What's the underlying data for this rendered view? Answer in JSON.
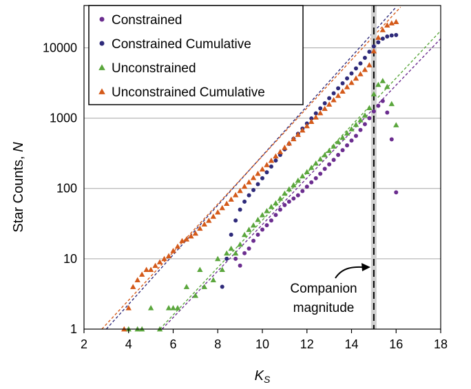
{
  "chart_data": {
    "type": "scatter",
    "title": "",
    "xlabel": "K",
    "xlabel_sub": "S",
    "ylabel_prefix": "Star Counts, ",
    "ylabel_var": "N",
    "xlim": [
      2,
      18
    ],
    "ylim": [
      1,
      40000
    ],
    "yscale": "log",
    "xticks": [
      2,
      4,
      6,
      8,
      10,
      12,
      14,
      16,
      18
    ],
    "yticks": [
      1,
      10,
      100,
      1000,
      10000
    ],
    "yticklabels": [
      "1",
      "10",
      "100",
      "1000",
      "10000"
    ],
    "grid": "horizontal",
    "legend_position": "top-left",
    "companion_magnitude": 15.0,
    "annotation": {
      "line1": "Companion",
      "line2": "magnitude"
    },
    "series": [
      {
        "name": "Constrained",
        "marker": "circle",
        "color": "#6b2d8f",
        "points": [
          [
            8.8,
            10
          ],
          [
            9.0,
            8
          ],
          [
            9.2,
            12
          ],
          [
            9.4,
            14
          ],
          [
            9.6,
            18
          ],
          [
            9.8,
            22
          ],
          [
            10.0,
            26
          ],
          [
            10.2,
            30
          ],
          [
            10.4,
            35
          ],
          [
            10.6,
            42
          ],
          [
            10.8,
            50
          ],
          [
            11.0,
            58
          ],
          [
            11.2,
            65
          ],
          [
            11.4,
            72
          ],
          [
            11.6,
            80
          ],
          [
            11.8,
            92
          ],
          [
            12.0,
            106
          ],
          [
            12.2,
            122
          ],
          [
            12.4,
            140
          ],
          [
            12.6,
            162
          ],
          [
            12.8,
            190
          ],
          [
            13.0,
            220
          ],
          [
            13.2,
            255
          ],
          [
            13.4,
            300
          ],
          [
            13.6,
            350
          ],
          [
            13.8,
            410
          ],
          [
            14.0,
            480
          ],
          [
            14.2,
            560
          ],
          [
            14.4,
            680
          ],
          [
            14.6,
            820
          ],
          [
            14.8,
            1000
          ],
          [
            15.0,
            1250
          ],
          [
            15.2,
            1500
          ],
          [
            15.4,
            1750
          ],
          [
            15.6,
            1200
          ],
          [
            15.8,
            500
          ],
          [
            16.0,
            88
          ]
        ]
      },
      {
        "name": "Constrained Cumulative",
        "marker": "circle",
        "color": "#2e2a7a",
        "points": [
          [
            8.2,
            4
          ],
          [
            8.4,
            10
          ],
          [
            8.6,
            22
          ],
          [
            8.8,
            35
          ],
          [
            9.0,
            50
          ],
          [
            9.2,
            65
          ],
          [
            9.4,
            80
          ],
          [
            9.6,
            95
          ],
          [
            9.8,
            115
          ],
          [
            10.0,
            140
          ],
          [
            10.2,
            170
          ],
          [
            10.4,
            205
          ],
          [
            10.6,
            250
          ],
          [
            10.8,
            300
          ],
          [
            11.0,
            360
          ],
          [
            11.2,
            430
          ],
          [
            11.4,
            510
          ],
          [
            11.6,
            600
          ],
          [
            11.8,
            710
          ],
          [
            12.0,
            840
          ],
          [
            12.2,
            990
          ],
          [
            12.4,
            1170
          ],
          [
            12.6,
            1380
          ],
          [
            12.8,
            1630
          ],
          [
            13.0,
            1920
          ],
          [
            13.2,
            2260
          ],
          [
            13.4,
            2660
          ],
          [
            13.6,
            3130
          ],
          [
            13.8,
            3680
          ],
          [
            14.0,
            4330
          ],
          [
            14.2,
            5100
          ],
          [
            14.4,
            6000
          ],
          [
            14.6,
            7200
          ],
          [
            14.8,
            8800
          ],
          [
            15.0,
            10500
          ],
          [
            15.2,
            12000
          ],
          [
            15.4,
            13500
          ],
          [
            15.6,
            14500
          ],
          [
            15.8,
            15000
          ],
          [
            16.0,
            15200
          ]
        ]
      },
      {
        "name": "Unconstrained",
        "marker": "triangle",
        "color": "#5aa63c",
        "points": [
          [
            4.0,
            1
          ],
          [
            4.4,
            1
          ],
          [
            4.6,
            1
          ],
          [
            5.0,
            2
          ],
          [
            5.4,
            1
          ],
          [
            5.8,
            2
          ],
          [
            6.0,
            2
          ],
          [
            6.2,
            2
          ],
          [
            6.6,
            4
          ],
          [
            7.0,
            3
          ],
          [
            7.2,
            7
          ],
          [
            7.4,
            4
          ],
          [
            7.8,
            5
          ],
          [
            8.0,
            10
          ],
          [
            8.2,
            7
          ],
          [
            8.4,
            12
          ],
          [
            8.6,
            14
          ],
          [
            8.8,
            12
          ],
          [
            9.0,
            16
          ],
          [
            9.2,
            22
          ],
          [
            9.4,
            26
          ],
          [
            9.6,
            30
          ],
          [
            9.8,
            36
          ],
          [
            10.0,
            42
          ],
          [
            10.2,
            48
          ],
          [
            10.4,
            55
          ],
          [
            10.6,
            62
          ],
          [
            10.8,
            72
          ],
          [
            11.0,
            85
          ],
          [
            11.2,
            98
          ],
          [
            11.4,
            112
          ],
          [
            11.6,
            130
          ],
          [
            11.8,
            150
          ],
          [
            12.0,
            172
          ],
          [
            12.2,
            198
          ],
          [
            12.4,
            228
          ],
          [
            12.6,
            262
          ],
          [
            12.8,
            300
          ],
          [
            13.0,
            345
          ],
          [
            13.2,
            398
          ],
          [
            13.4,
            460
          ],
          [
            13.6,
            530
          ],
          [
            13.8,
            610
          ],
          [
            14.0,
            700
          ],
          [
            14.2,
            810
          ],
          [
            14.4,
            940
          ],
          [
            14.6,
            1100
          ],
          [
            14.8,
            1400
          ],
          [
            15.0,
            2200
          ],
          [
            15.2,
            3000
          ],
          [
            15.4,
            3400
          ],
          [
            15.6,
            2800
          ],
          [
            15.8,
            1600
          ],
          [
            16.0,
            800
          ]
        ]
      },
      {
        "name": "Unconstrained Cumulative",
        "marker": "triangle",
        "color": "#d45a1a",
        "points": [
          [
            3.8,
            1
          ],
          [
            4.0,
            2
          ],
          [
            4.2,
            4
          ],
          [
            4.4,
            5
          ],
          [
            4.6,
            6
          ],
          [
            4.8,
            7
          ],
          [
            5.0,
            7
          ],
          [
            5.2,
            8
          ],
          [
            5.4,
            9
          ],
          [
            5.6,
            10
          ],
          [
            5.8,
            11
          ],
          [
            6.0,
            13
          ],
          [
            6.2,
            15
          ],
          [
            6.4,
            18
          ],
          [
            6.6,
            19
          ],
          [
            6.8,
            21
          ],
          [
            7.0,
            23
          ],
          [
            7.2,
            27
          ],
          [
            7.4,
            31
          ],
          [
            7.6,
            35
          ],
          [
            7.8,
            40
          ],
          [
            8.0,
            46
          ],
          [
            8.2,
            53
          ],
          [
            8.4,
            61
          ],
          [
            8.6,
            70
          ],
          [
            8.8,
            81
          ],
          [
            9.0,
            93
          ],
          [
            9.2,
            107
          ],
          [
            9.4,
            123
          ],
          [
            9.6,
            142
          ],
          [
            9.8,
            163
          ],
          [
            10.0,
            188
          ],
          [
            10.2,
            217
          ],
          [
            10.4,
            250
          ],
          [
            10.6,
            288
          ],
          [
            10.8,
            332
          ],
          [
            11.0,
            382
          ],
          [
            11.2,
            440
          ],
          [
            11.4,
            507
          ],
          [
            11.6,
            584
          ],
          [
            11.8,
            673
          ],
          [
            12.0,
            775
          ],
          [
            12.2,
            893
          ],
          [
            12.4,
            1030
          ],
          [
            12.6,
            1186
          ],
          [
            12.8,
            1366
          ],
          [
            13.0,
            1575
          ],
          [
            13.2,
            1815
          ],
          [
            13.4,
            2091
          ],
          [
            13.6,
            2410
          ],
          [
            13.8,
            2777
          ],
          [
            14.0,
            3200
          ],
          [
            14.2,
            3687
          ],
          [
            14.4,
            4250
          ],
          [
            14.6,
            4897
          ],
          [
            14.8,
            5700
          ],
          [
            15.0,
            9000
          ],
          [
            15.2,
            14000
          ],
          [
            15.4,
            18000
          ],
          [
            15.6,
            21000
          ],
          [
            15.8,
            22500
          ],
          [
            16.0,
            23500
          ]
        ]
      }
    ],
    "fit_lines": [
      {
        "series": "Constrained",
        "color": "#6b2d8f",
        "x": [
          5.5,
          18.0
        ],
        "y": [
          1,
          13500
        ]
      },
      {
        "series": "Constrained Cumulative",
        "color": "#2e2a7a",
        "x": [
          3.0,
          16.0
        ],
        "y": [
          1,
          38000
        ]
      },
      {
        "series": "Unconstrained",
        "color": "#5aa63c",
        "x": [
          5.4,
          18.0
        ],
        "y": [
          1,
          17500
        ]
      },
      {
        "series": "Unconstrained Cumulative",
        "color": "#d45a1a",
        "x": [
          2.8,
          16.2
        ],
        "y": [
          1,
          38000
        ]
      }
    ]
  }
}
